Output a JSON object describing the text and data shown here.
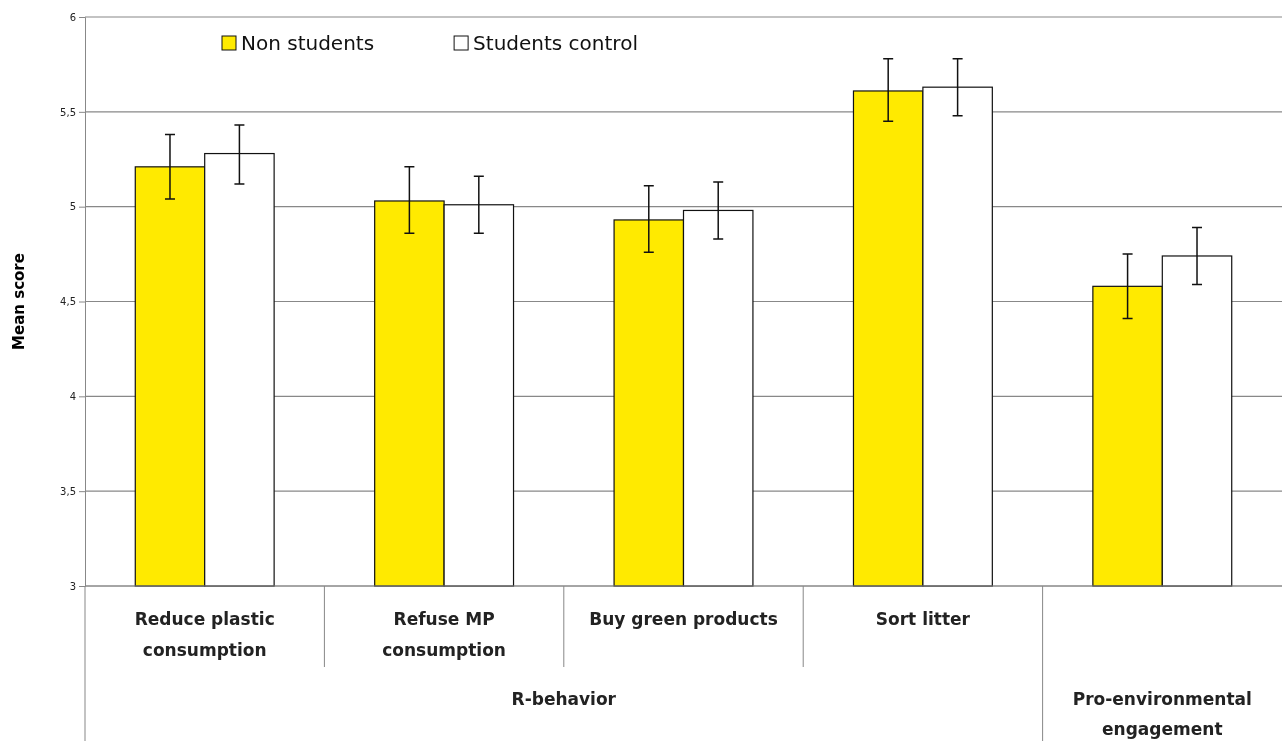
{
  "chart_data": {
    "type": "bar",
    "ylabel": "Mean score",
    "categories": [
      "Reduce plastic consumption",
      "Refuse MP consumption",
      "Buy green products",
      "Sort litter",
      null
    ],
    "series": [
      {
        "name": "Non students",
        "color": "#ffea00",
        "values": [
          5.21,
          5.03,
          4.93,
          5.61,
          4.58
        ],
        "errors": [
          [
            5.04,
            5.38
          ],
          [
            4.86,
            5.21
          ],
          [
            4.76,
            5.11
          ],
          [
            5.45,
            5.78
          ],
          [
            4.41,
            4.75
          ]
        ]
      },
      {
        "name": "Students control",
        "color": "#ffffff",
        "values": [
          5.28,
          5.01,
          4.98,
          5.63,
          4.74
        ],
        "errors": [
          [
            5.12,
            5.43
          ],
          [
            4.86,
            5.16
          ],
          [
            4.83,
            5.13
          ],
          [
            5.48,
            5.78
          ],
          [
            4.59,
            4.89
          ]
        ]
      }
    ],
    "annotations": [
      "R-behavior",
      "Pro-environmental engagement"
    ],
    "ylim": [
      3,
      6
    ],
    "yticks": [
      {
        "value": 3,
        "label": "3"
      },
      {
        "value": 3.5,
        "label": "3,5"
      },
      {
        "value": 4,
        "label": "4"
      },
      {
        "value": 4.5,
        "label": "4,5"
      },
      {
        "value": 5,
        "label": "5"
      },
      {
        "value": 5.5,
        "label": "5,5"
      },
      {
        "value": 6,
        "label": "6"
      }
    ],
    "grid": "y",
    "legend": "top"
  }
}
